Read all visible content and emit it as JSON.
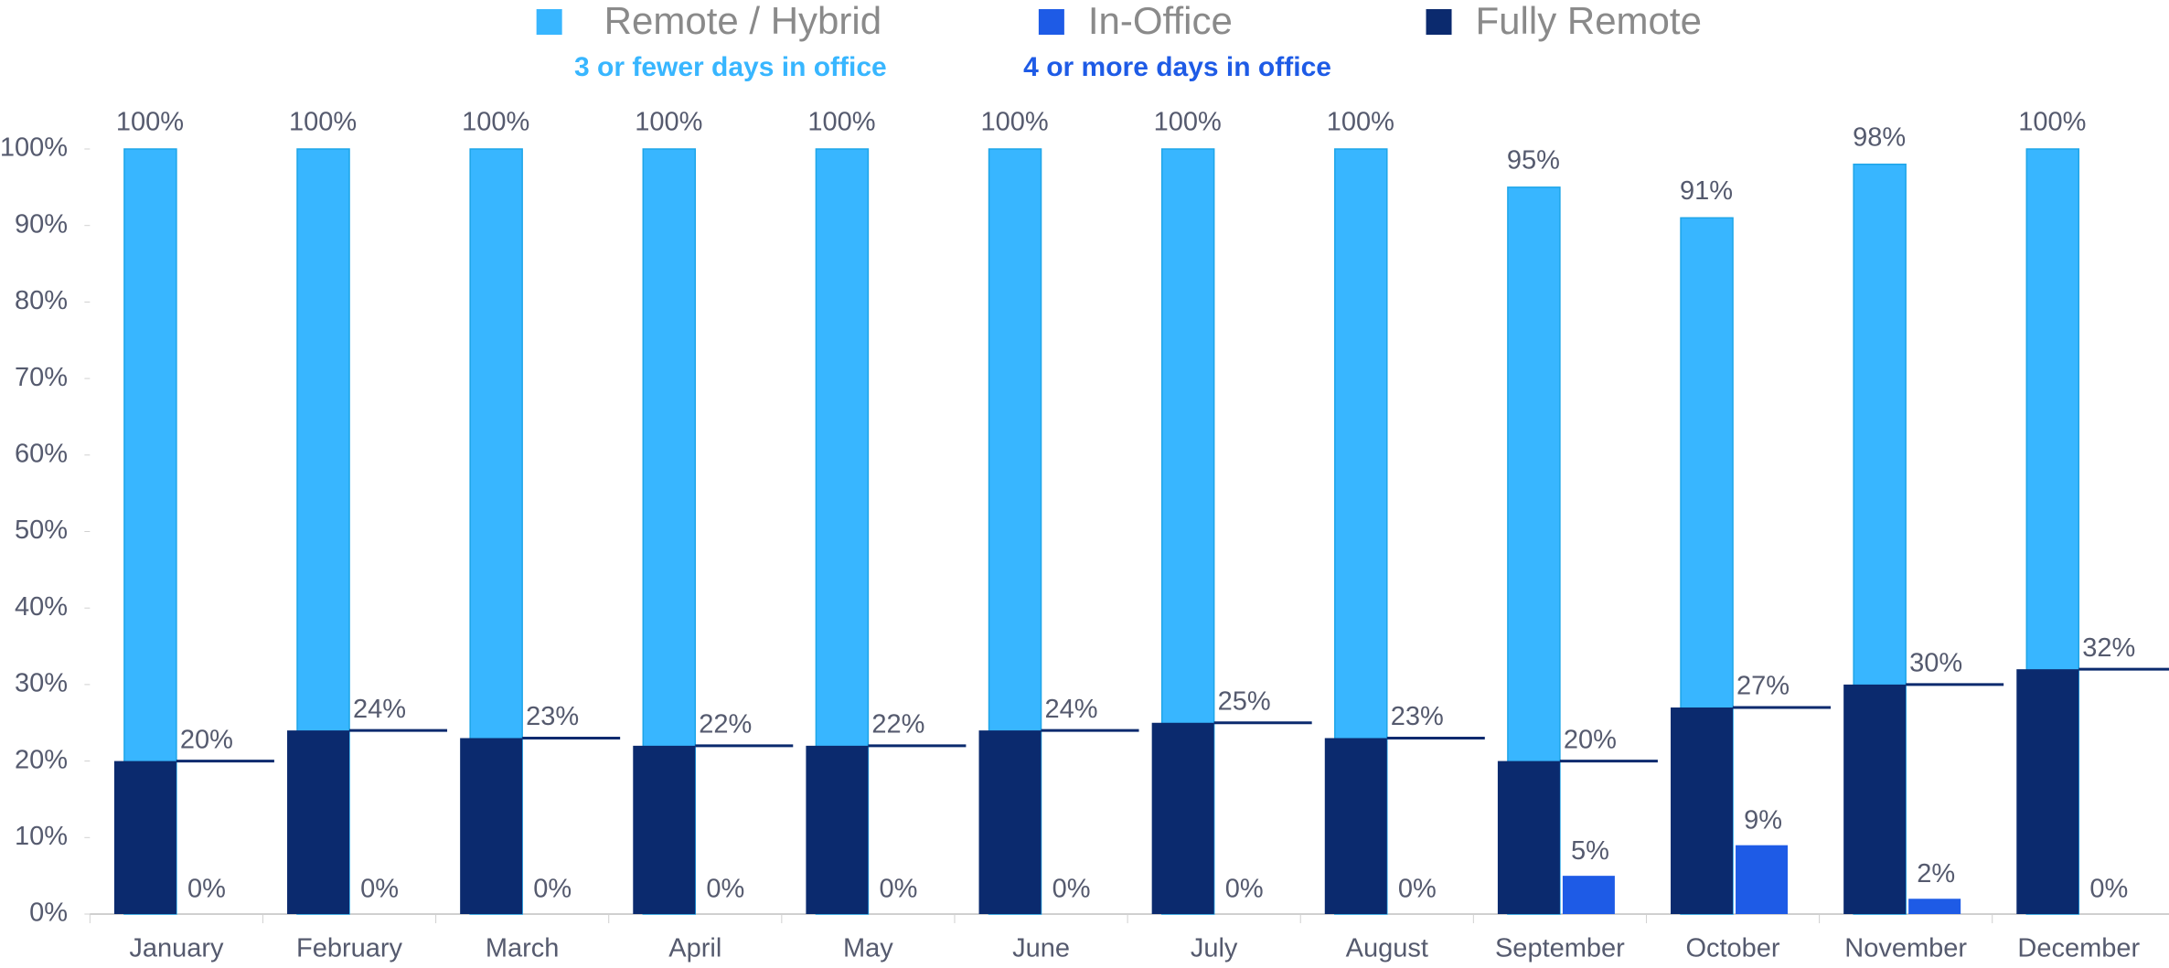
{
  "chart_data": {
    "type": "bar",
    "categories": [
      "January",
      "February",
      "March",
      "April",
      "May",
      "June",
      "July",
      "August",
      "September",
      "October",
      "November",
      "December"
    ],
    "series": [
      {
        "name": "Remote / Hybrid",
        "subtitle": "3 or fewer days in office",
        "color": "#38b6ff",
        "values": [
          100,
          100,
          100,
          100,
          100,
          100,
          100,
          100,
          95,
          91,
          98,
          100
        ],
        "value_labels": [
          "100%",
          "100%",
          "100%",
          "100%",
          "100%",
          "100%",
          "100%",
          "100%",
          "95%",
          "91%",
          "98%",
          "100%"
        ]
      },
      {
        "name": "In-Office",
        "subtitle": "4 or more days in office",
        "color": "#1e5be6",
        "values": [
          0,
          0,
          0,
          0,
          0,
          0,
          0,
          0,
          5,
          9,
          2,
          0
        ],
        "value_labels": [
          "0%",
          "0%",
          "0%",
          "0%",
          "0%",
          "0%",
          "0%",
          "0%",
          "5%",
          "9%",
          "2%",
          "0%"
        ]
      },
      {
        "name": "Fully Remote",
        "color": "#0b2a6e",
        "values": [
          20,
          24,
          23,
          22,
          22,
          24,
          25,
          23,
          20,
          27,
          30,
          32
        ],
        "value_labels": [
          "20%",
          "24%",
          "23%",
          "22%",
          "22%",
          "24%",
          "25%",
          "23%",
          "20%",
          "27%",
          "30%",
          "32%"
        ]
      }
    ],
    "ylim": [
      0,
      100
    ],
    "yticks": [
      {
        "value": 0,
        "label": "0%"
      },
      {
        "value": 10,
        "label": "10%"
      },
      {
        "value": 20,
        "label": "20%"
      },
      {
        "value": 30,
        "label": "30%"
      },
      {
        "value": 40,
        "label": "40%"
      },
      {
        "value": 50,
        "label": "50%"
      },
      {
        "value": 60,
        "label": "60%"
      },
      {
        "value": 70,
        "label": "70%"
      },
      {
        "value": 80,
        "label": "80%"
      },
      {
        "value": 90,
        "label": "90%"
      },
      {
        "value": 100,
        "label": "100%"
      }
    ],
    "grid": false,
    "legend": "top"
  }
}
